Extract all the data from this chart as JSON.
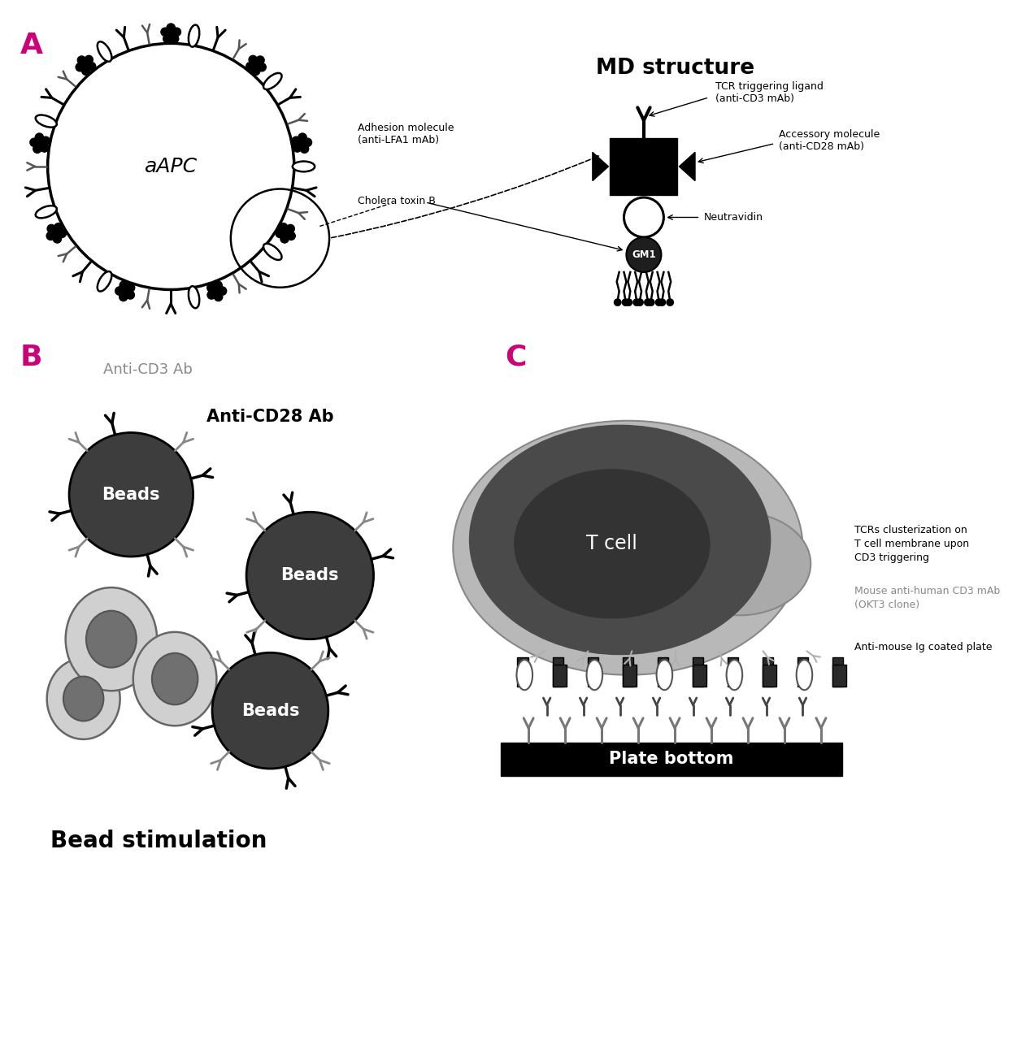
{
  "panel_A_label": "A",
  "panel_B_label": "B",
  "panel_C_label": "C",
  "label_color": "#cc0077",
  "aAPC_label": "aAPC",
  "md_structure_title": "MD structure",
  "tcr_label": "TCR triggering ligand\n(anti-CD3 mAb)",
  "accessory_label": "Accessory molecule\n(anti-CD28 mAb)",
  "adhesion_label": "Adhesion molecule\n(anti-LFA1 mAb)",
  "neutravidin_label": "Neutravidin",
  "cholera_label": "Cholera toxin B",
  "gm1_label": "GM1",
  "beads_label": "Beads",
  "anti_cd3_label": "Anti-CD3 Ab",
  "anti_cd28_label": "Anti-CD28 Ab",
  "bead_stim_label": "Bead stimulation",
  "tcell_label": "T cell",
  "plate_bottom_label": "Plate bottom",
  "tcr_cluster_label": "TCRs clusterization on\nT cell membrane upon\nCD3 triggering",
  "mouse_cd3_label": "Mouse anti-human CD3 mAb\n(OKT3 clone)",
  "anti_mouse_label": "Anti-mouse Ig coated plate",
  "dark_gray": "#3d3d3d",
  "medium_gray": "#888888",
  "light_gray": "#b0b0b0",
  "lighter_gray": "#d0d0d0",
  "cell_outer": "#c8c8c8",
  "black": "#000000",
  "white": "#ffffff",
  "background": "#ffffff"
}
